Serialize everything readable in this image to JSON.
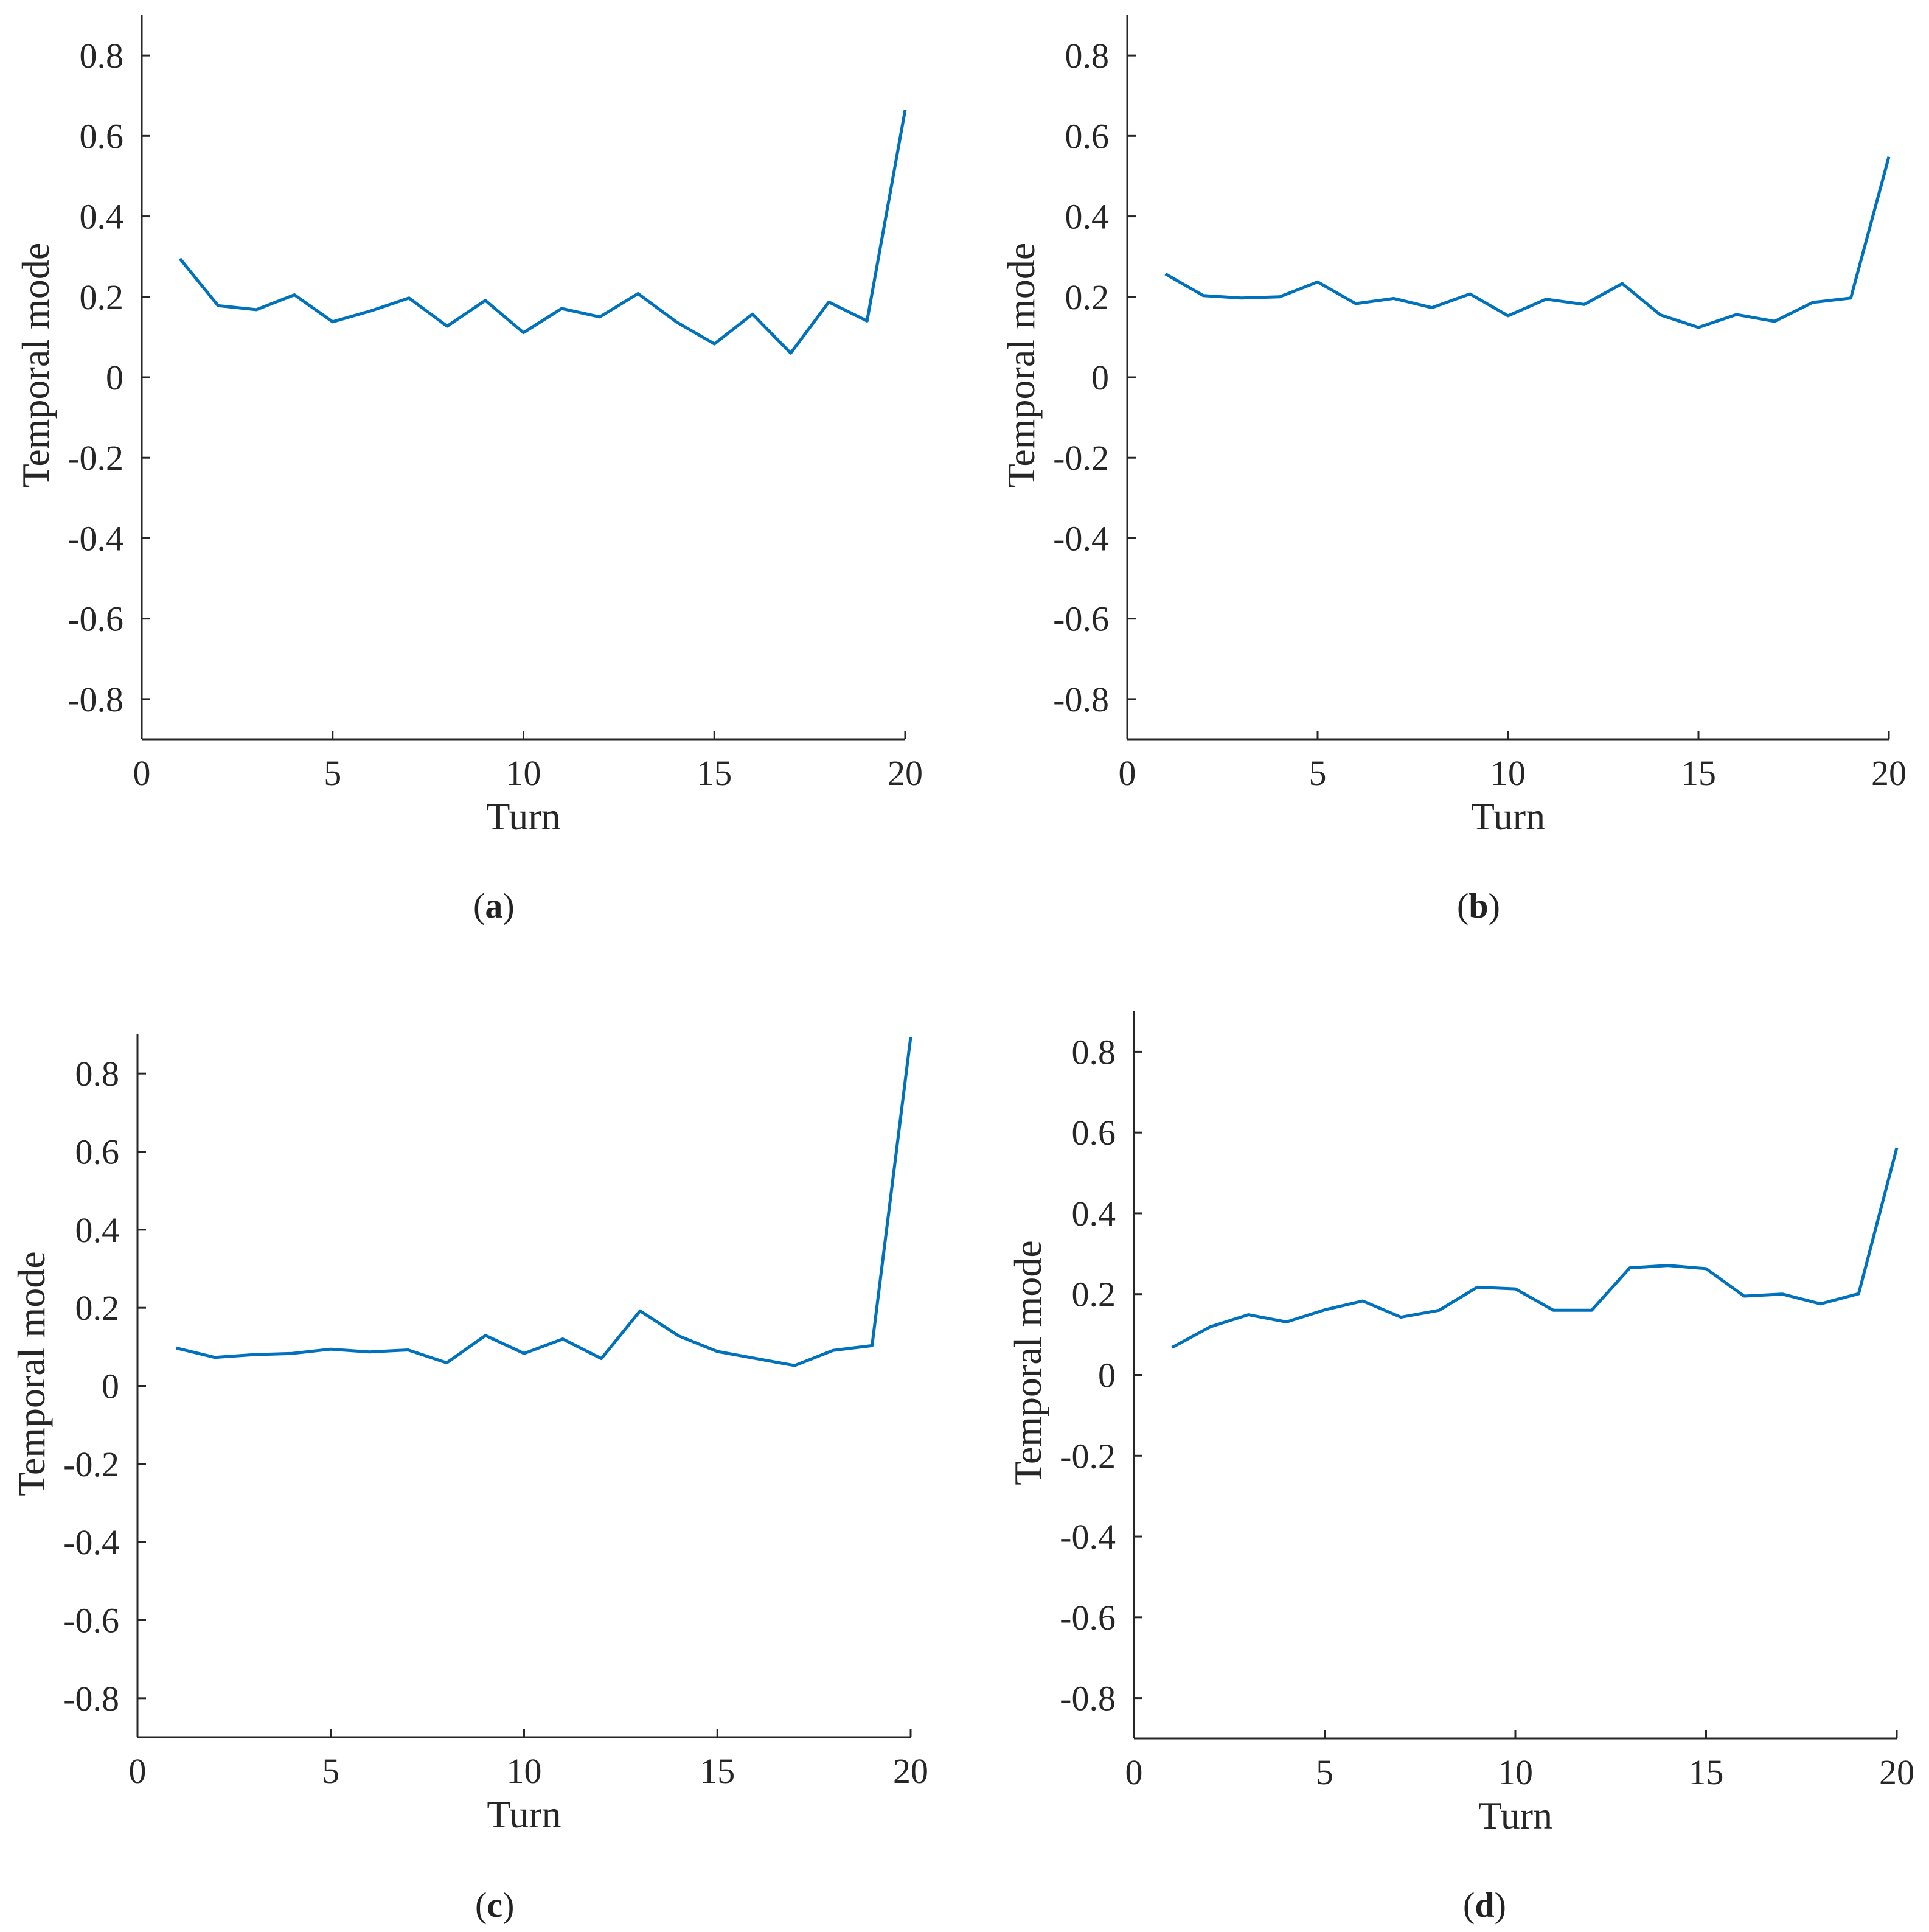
{
  "chart_data": [
    {
      "type": "line",
      "panel": "(a)",
      "caption_letter": "a",
      "xlabel": "Turn",
      "ylabel": "Temporal mode",
      "xlim": [
        0,
        20
      ],
      "ylim": [
        -0.9,
        0.9
      ],
      "xticks": [
        "0",
        "5",
        "10",
        "15",
        "20"
      ],
      "yticks": [
        "-0.8",
        "-0.6",
        "-0.4",
        "-0.2",
        "0",
        "0.2",
        "0.4",
        "0.6",
        "0.8"
      ],
      "color": "#0072BD",
      "x": [
        1,
        2,
        3,
        4,
        5,
        6,
        7,
        8,
        9,
        10,
        11,
        12,
        13,
        14,
        15,
        16,
        17,
        18,
        19,
        20
      ],
      "values": [
        0.295,
        0.178,
        0.168,
        0.205,
        0.138,
        0.165,
        0.197,
        0.127,
        0.191,
        0.111,
        0.171,
        0.15,
        0.208,
        0.138,
        0.083,
        0.157,
        0.06,
        0.187,
        0.14,
        0.665
      ]
    },
    {
      "type": "line",
      "panel": "(b)",
      "caption_letter": "b",
      "xlabel": "Turn",
      "ylabel": "Temporal mode",
      "xlim": [
        0,
        20
      ],
      "ylim": [
        -0.9,
        0.9
      ],
      "xticks": [
        "0",
        "5",
        "10",
        "15",
        "20"
      ],
      "yticks": [
        "-0.8",
        "-0.6",
        "-0.4",
        "-0.2",
        "0",
        "0.2",
        "0.4",
        "0.6",
        "0.8"
      ],
      "color": "#0072BD",
      "x": [
        1,
        2,
        3,
        4,
        5,
        6,
        7,
        8,
        9,
        10,
        11,
        12,
        13,
        14,
        15,
        16,
        17,
        18,
        19,
        20
      ],
      "values": [
        0.257,
        0.203,
        0.197,
        0.2,
        0.237,
        0.183,
        0.196,
        0.173,
        0.207,
        0.153,
        0.194,
        0.181,
        0.233,
        0.155,
        0.124,
        0.156,
        0.139,
        0.186,
        0.197,
        0.548
      ]
    },
    {
      "type": "line",
      "panel": "(c)",
      "caption_letter": "c",
      "xlabel": "Turn",
      "ylabel": "Temporal mode",
      "xlim": [
        0,
        20
      ],
      "ylim": [
        -0.9,
        0.9
      ],
      "xticks": [
        "0",
        "5",
        "10",
        "15",
        "20"
      ],
      "yticks": [
        "-0.8",
        "-0.6",
        "-0.4",
        "-0.2",
        "0",
        "0.2",
        "0.4",
        "0.6",
        "0.8"
      ],
      "color": "#0072BD",
      "x": [
        1,
        2,
        3,
        4,
        5,
        6,
        7,
        8,
        9,
        10,
        11,
        12,
        13,
        14,
        15,
        16,
        17,
        18,
        19,
        20
      ],
      "values": [
        0.097,
        0.073,
        0.08,
        0.083,
        0.094,
        0.087,
        0.092,
        0.059,
        0.129,
        0.083,
        0.12,
        0.07,
        0.192,
        0.128,
        0.088,
        0.07,
        0.052,
        0.091,
        0.103,
        0.893
      ]
    },
    {
      "type": "line",
      "panel": "(d)",
      "caption_letter": "d",
      "xlabel": "Turn",
      "ylabel": "Temporal mode",
      "xlim": [
        0,
        20
      ],
      "ylim": [
        -0.9,
        0.9
      ],
      "xticks": [
        "0",
        "5",
        "10",
        "15",
        "20"
      ],
      "yticks": [
        "-0.8",
        "-0.6",
        "-0.4",
        "-0.2",
        "0",
        "0.2",
        "0.4",
        "0.6",
        "0.8"
      ],
      "color": "#0072BD",
      "x": [
        1,
        2,
        3,
        4,
        5,
        6,
        7,
        8,
        9,
        10,
        11,
        12,
        13,
        14,
        15,
        16,
        17,
        18,
        19,
        20
      ],
      "values": [
        0.068,
        0.119,
        0.149,
        0.131,
        0.161,
        0.183,
        0.143,
        0.16,
        0.217,
        0.213,
        0.16,
        0.16,
        0.265,
        0.271,
        0.263,
        0.195,
        0.2,
        0.176,
        0.201,
        0.562
      ]
    }
  ]
}
